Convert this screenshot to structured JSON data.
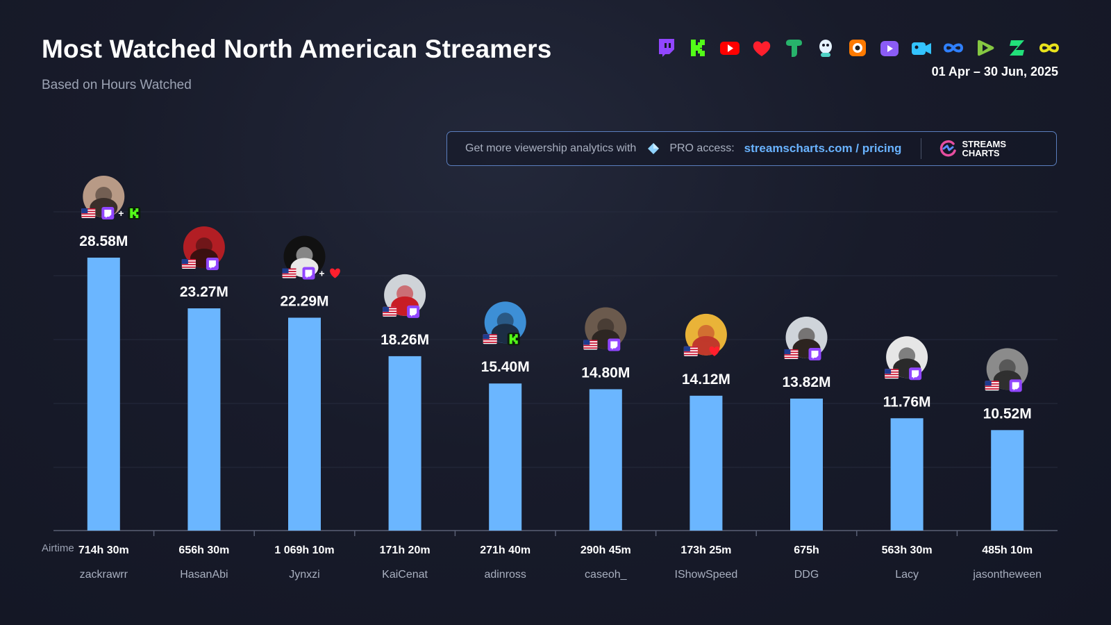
{
  "header": {
    "title": "Most Watched North American Streamers",
    "subtitle": "Based on Hours Watched",
    "date_range": "01 Apr – 30 Jun, 2025"
  },
  "platform_icons": [
    {
      "name": "twitch-icon",
      "color": "#9146ff"
    },
    {
      "name": "kick-icon",
      "color": "#53fc18"
    },
    {
      "name": "youtube-icon",
      "color": "#ff0000"
    },
    {
      "name": "heart-platform-icon",
      "color": "#ff1f2d"
    },
    {
      "name": "green-platform-icon",
      "color": "#27b36b"
    },
    {
      "name": "mascot-platform-icon",
      "color": "#e6f3ff"
    },
    {
      "name": "orange-platform-icon",
      "color": "#ff7a00"
    },
    {
      "name": "purple-platform-icon",
      "color": "#8b5cf6"
    },
    {
      "name": "camera-platform-icon",
      "color": "#33c3ff"
    },
    {
      "name": "loop-platform-icon",
      "color": "#2f80ff"
    },
    {
      "name": "rumble-icon",
      "color": "#85c742"
    },
    {
      "name": "zeta-platform-icon",
      "color": "#22e07a"
    },
    {
      "name": "infinity-platform-icon",
      "color": "#e8e21c"
    }
  ],
  "promo": {
    "text": "Get more viewership analytics with",
    "pro_label": "PRO access:",
    "link_text": "streamscharts.com / pricing",
    "brand_line1": "STREAMS",
    "brand_line2": "CHARTS"
  },
  "chart_data": {
    "type": "bar",
    "categories": [
      "zackrawrr",
      "HasanAbi",
      "Jynxzi",
      "KaiCenat",
      "adinross",
      "caseoh_",
      "IShowSpeed",
      "DDG",
      "Lacy",
      "jasontheween"
    ],
    "values": [
      28.58,
      23.27,
      22.29,
      18.26,
      15.4,
      14.8,
      14.12,
      13.82,
      11.76,
      10.52
    ],
    "value_labels": [
      "28.58M",
      "23.27M",
      "22.29M",
      "18.26M",
      "15.40M",
      "14.80M",
      "14.12M",
      "13.82M",
      "11.76M",
      "10.52M"
    ],
    "airtime_label": "Airtime",
    "airtime": [
      "714h 30m",
      "656h 30m",
      "1 069h 10m",
      "171h 20m",
      "271h 40m",
      "290h 45m",
      "173h 25m",
      "675h",
      "563h 30m",
      "485h 10m"
    ],
    "platforms": [
      [
        "twitch",
        "kick"
      ],
      [
        "twitch"
      ],
      [
        "twitch",
        "heart"
      ],
      [
        "twitch"
      ],
      [
        "kick"
      ],
      [
        "twitch"
      ],
      [
        "heart"
      ],
      [
        "twitch"
      ],
      [
        "twitch"
      ],
      [
        "twitch"
      ]
    ],
    "ylim": [
      0,
      30
    ],
    "bar_color": "#6bb6ff",
    "grid": true
  }
}
